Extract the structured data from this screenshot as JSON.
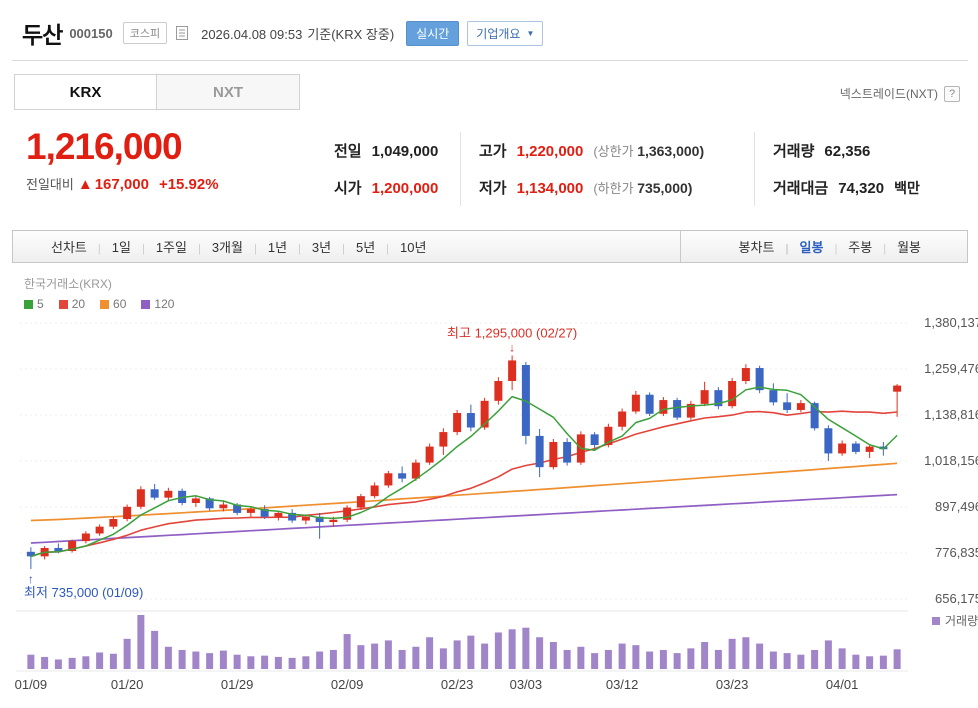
{
  "header": {
    "stock_name": "두산",
    "stock_code": "000150",
    "market_badge": "코스피",
    "datetime": "2026.04.08 09:53",
    "datetime_suffix": "기준(KRX 장중)",
    "realtime_button": "실시간",
    "overview_button": "기업개요"
  },
  "tabs": {
    "krx": "KRX",
    "nxt": "NXT",
    "right_label": "넥스트레이드(NXT)",
    "help_icon": "?"
  },
  "price": {
    "current": "1,216,000",
    "change_label": "전일대비",
    "change_arrow": "▲",
    "change_value": "167,000",
    "change_percent": "+15.92%"
  },
  "summary": {
    "prev_label": "전일",
    "prev_value": "1,049,000",
    "high_label": "고가",
    "high_value": "1,220,000",
    "upper_limit_label": "(상한가",
    "upper_limit_value": "1,363,000)",
    "volume_label": "거래량",
    "volume_value": "62,356",
    "open_label": "시가",
    "open_value": "1,200,000",
    "low_label": "저가",
    "low_value": "1,134,000",
    "lower_limit_label": "(하한가",
    "lower_limit_value": "735,000)",
    "amount_label": "거래대금",
    "amount_value": "74,320",
    "amount_unit": "백만"
  },
  "toolbar": {
    "left": [
      "선차트",
      "1일",
      "1주일",
      "3개월",
      "1년",
      "3년",
      "5년",
      "10년"
    ],
    "right": [
      "봉차트",
      "일봉",
      "주봉",
      "월봉"
    ],
    "active": "일봉"
  },
  "chart_data": {
    "type": "candlestick",
    "exchange_label": "한국거래소(KRX)",
    "unit": "thousand KRW (candle values o,h,l,c are in 1000s of won; v is volume)",
    "ma_legend": [
      {
        "label": "5",
        "color": "#3aa13a"
      },
      {
        "label": "20",
        "color": "#e2453c"
      },
      {
        "label": "60",
        "color": "#ef8f2f"
      },
      {
        "label": "120",
        "color": "#8f5fc4"
      }
    ],
    "y_ticks": [
      1380137,
      1259476,
      1138816,
      1018156,
      897496,
      776835,
      656175
    ],
    "x_ticks": [
      {
        "label": "01/09",
        "i": 0
      },
      {
        "label": "01/20",
        "i": 7
      },
      {
        "label": "01/29",
        "i": 15
      },
      {
        "label": "02/09",
        "i": 23
      },
      {
        "label": "02/23",
        "i": 31
      },
      {
        "label": "03/03",
        "i": 36
      },
      {
        "label": "03/12",
        "i": 43
      },
      {
        "label": "03/23",
        "i": 51
      },
      {
        "label": "04/01",
        "i": 59
      }
    ],
    "annotations": {
      "high": {
        "text": "최고 1,295,000 (02/27)",
        "i": 35,
        "price": 1295
      },
      "low": {
        "text": "최저 735,000 (01/09)",
        "i": 0,
        "price": 735
      }
    },
    "volume_legend": "거래량",
    "colors": {
      "up": "#dd2f1f",
      "down": "#3b66c4",
      "volume": "#a085c8",
      "ma5": "#3aa13a",
      "ma20": "#e2453c",
      "ma60": "#ef8f2f",
      "ma120": "#8f5fc4",
      "annotation_high": "#d93025",
      "annotation_low": "#2b57c0"
    },
    "candles": [
      [
        780,
        792,
        735,
        768,
        45
      ],
      [
        768,
        795,
        760,
        790,
        38
      ],
      [
        790,
        802,
        776,
        782,
        30
      ],
      [
        782,
        812,
        778,
        808,
        35
      ],
      [
        808,
        834,
        802,
        828,
        40
      ],
      [
        828,
        852,
        822,
        846,
        52
      ],
      [
        846,
        872,
        840,
        866,
        48
      ],
      [
        866,
        904,
        860,
        898,
        95
      ],
      [
        898,
        952,
        892,
        944,
        170
      ],
      [
        944,
        958,
        916,
        922,
        120
      ],
      [
        922,
        948,
        912,
        940,
        70
      ],
      [
        940,
        946,
        902,
        908,
        60
      ],
      [
        908,
        928,
        898,
        920,
        55
      ],
      [
        920,
        924,
        888,
        894,
        50
      ],
      [
        894,
        912,
        886,
        904,
        58
      ],
      [
        904,
        908,
        876,
        882,
        45
      ],
      [
        882,
        898,
        872,
        892,
        40
      ],
      [
        892,
        902,
        866,
        872,
        42
      ],
      [
        872,
        888,
        862,
        882,
        38
      ],
      [
        882,
        892,
        856,
        862,
        35
      ],
      [
        862,
        878,
        852,
        872,
        40
      ],
      [
        872,
        882,
        814,
        858,
        55
      ],
      [
        858,
        872,
        846,
        864,
        60
      ],
      [
        864,
        902,
        858,
        896,
        110
      ],
      [
        896,
        932,
        890,
        926,
        75
      ],
      [
        926,
        962,
        920,
        954,
        80
      ],
      [
        954,
        992,
        948,
        986,
        90
      ],
      [
        986,
        1004,
        962,
        972,
        60
      ],
      [
        972,
        1022,
        966,
        1014,
        70
      ],
      [
        1014,
        1064,
        1008,
        1056,
        100
      ],
      [
        1056,
        1104,
        1034,
        1094,
        65
      ],
      [
        1094,
        1152,
        1086,
        1144,
        90
      ],
      [
        1144,
        1166,
        1096,
        1106,
        105
      ],
      [
        1106,
        1184,
        1100,
        1176,
        80
      ],
      [
        1176,
        1238,
        1166,
        1228,
        115
      ],
      [
        1228,
        1295,
        1204,
        1282,
        125
      ],
      [
        1270,
        1278,
        1062,
        1084,
        130
      ],
      [
        1084,
        1102,
        976,
        1002,
        100
      ],
      [
        1002,
        1076,
        996,
        1068,
        85
      ],
      [
        1068,
        1078,
        1006,
        1014,
        60
      ],
      [
        1014,
        1096,
        1008,
        1088,
        70
      ],
      [
        1088,
        1094,
        1052,
        1060,
        50
      ],
      [
        1060,
        1116,
        1054,
        1108,
        60
      ],
      [
        1108,
        1156,
        1098,
        1148,
        80
      ],
      [
        1148,
        1202,
        1142,
        1192,
        75
      ],
      [
        1192,
        1198,
        1136,
        1142,
        55
      ],
      [
        1142,
        1186,
        1136,
        1178,
        60
      ],
      [
        1178,
        1184,
        1126,
        1132,
        50
      ],
      [
        1132,
        1176,
        1126,
        1168,
        65
      ],
      [
        1168,
        1226,
        1162,
        1204,
        85
      ],
      [
        1204,
        1212,
        1154,
        1162,
        60
      ],
      [
        1162,
        1236,
        1156,
        1228,
        95
      ],
      [
        1228,
        1272,
        1220,
        1262,
        100
      ],
      [
        1262,
        1268,
        1196,
        1204,
        80
      ],
      [
        1204,
        1222,
        1164,
        1172,
        55
      ],
      [
        1172,
        1196,
        1144,
        1152,
        50
      ],
      [
        1152,
        1178,
        1146,
        1170,
        45
      ],
      [
        1170,
        1174,
        1098,
        1104,
        60
      ],
      [
        1104,
        1112,
        1018,
        1038,
        90
      ],
      [
        1038,
        1072,
        1032,
        1064,
        65
      ],
      [
        1064,
        1070,
        1036,
        1042,
        45
      ],
      [
        1042,
        1062,
        1026,
        1056,
        40
      ],
      [
        1056,
        1068,
        1032,
        1049,
        42
      ],
      [
        1200,
        1220,
        1134,
        1216,
        62
      ]
    ]
  }
}
